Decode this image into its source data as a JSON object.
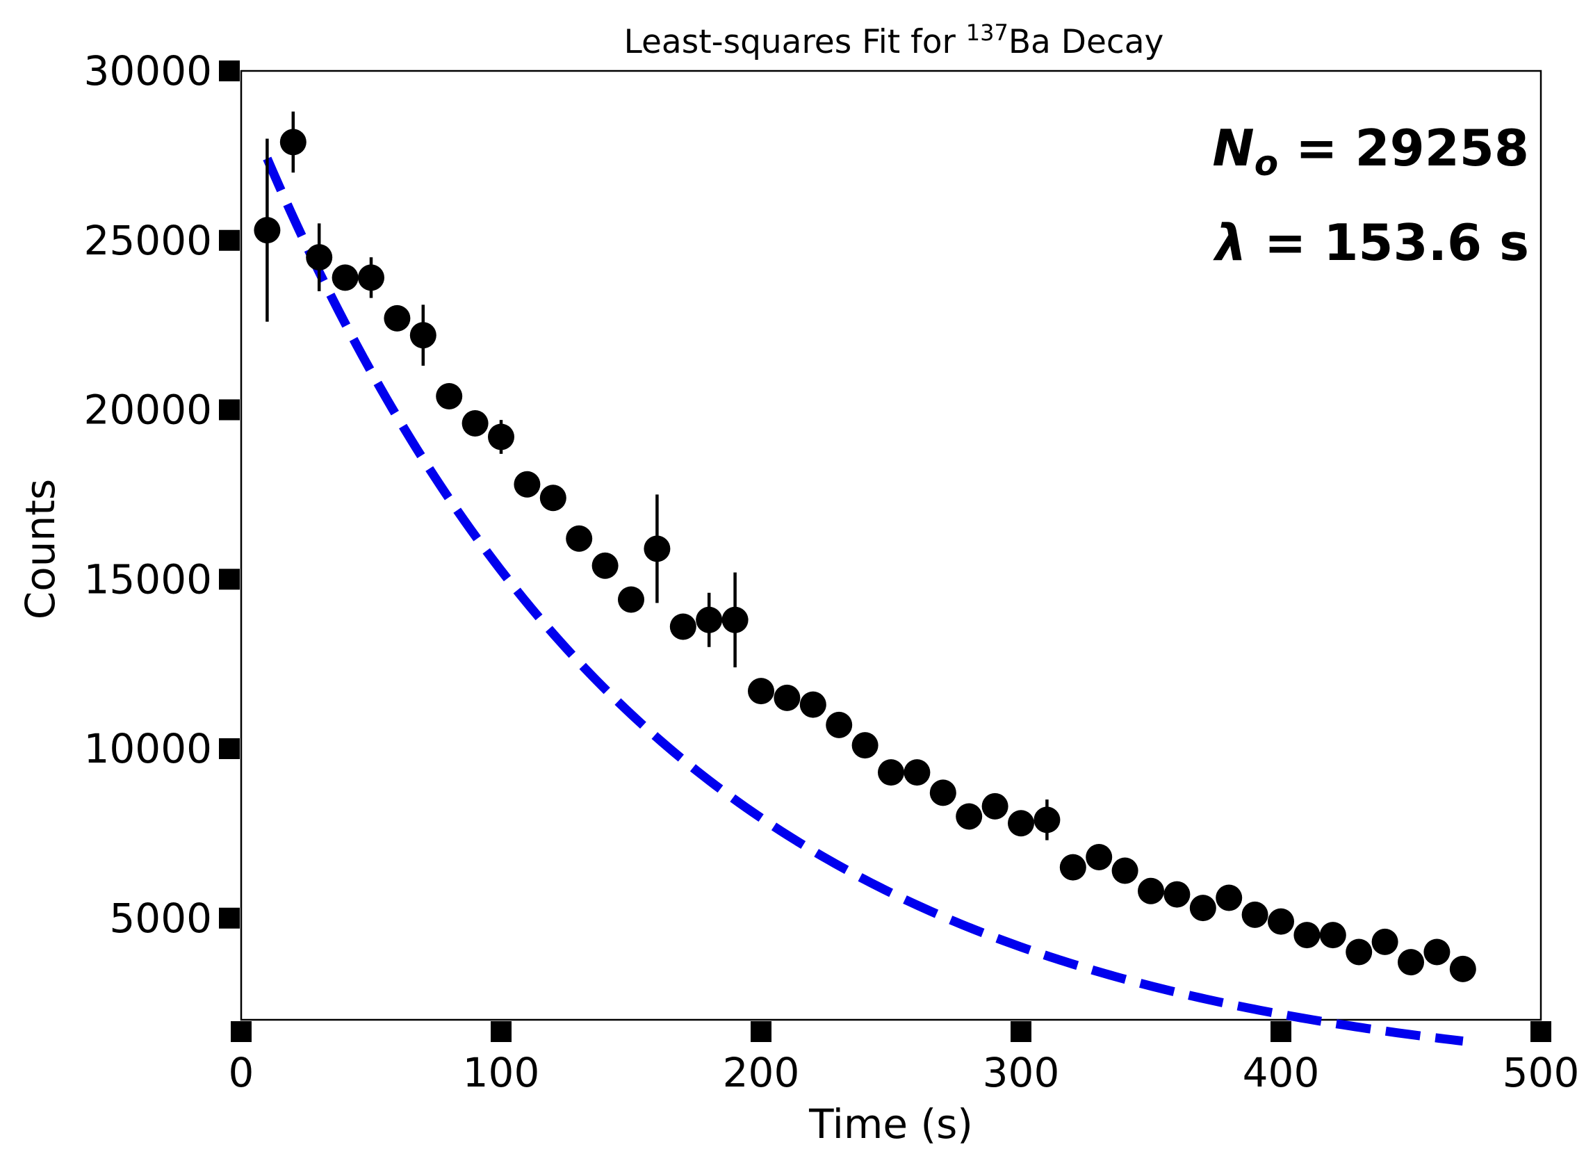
{
  "chart_data": {
    "type": "scatter",
    "title_prefix": "Least-squares Fit for ",
    "title_isotope_mass": "137",
    "title_suffix": "Ba Decay",
    "xlabel": "Time (s)",
    "ylabel": "Counts",
    "xlim": [
      0,
      500
    ],
    "ylim": [
      2000,
      30000
    ],
    "xticks": [
      0,
      100,
      200,
      300,
      400,
      500
    ],
    "yticks": [
      5000,
      10000,
      15000,
      20000,
      25000,
      30000
    ],
    "xtick_labels": [
      "0",
      "100",
      "200",
      "300",
      "400",
      "500"
    ],
    "ytick_labels": [
      "5000",
      "10000",
      "15000",
      "20000",
      "25000",
      "30000"
    ],
    "grid": false,
    "annotations": {
      "n0_symbol": "N",
      "n0_subscript": "o",
      "n0_text": " = 29258",
      "lambda_symbol": "λ",
      "lambda_text": " = 153.6 s"
    },
    "fit": {
      "style": "dashed",
      "color": "#0000ee",
      "N0": 29258,
      "tau": 153.6,
      "x_range": [
        10,
        470
      ]
    },
    "points_color": "#000000",
    "series": [
      {
        "x": [
          10,
          20,
          30,
          40,
          50,
          60,
          70,
          80,
          90,
          100,
          110,
          120,
          130,
          140,
          150,
          160,
          170,
          180,
          190,
          200,
          210,
          220,
          230,
          240,
          250,
          260,
          270,
          280,
          290,
          300,
          310,
          320,
          330,
          340,
          350,
          360,
          370,
          380,
          390,
          400,
          410,
          420,
          430,
          440,
          450,
          460,
          470
        ],
        "y": [
          25300,
          27900,
          24500,
          23900,
          23900,
          22700,
          22200,
          20400,
          19600,
          19200,
          17800,
          17400,
          16200,
          15400,
          14400,
          15900,
          13600,
          13800,
          13800,
          11700,
          11500,
          11300,
          10700,
          10100,
          9300,
          9300,
          8700,
          8000,
          8300,
          7800,
          7900,
          6500,
          6800,
          6400,
          5800,
          5700,
          5300,
          5600,
          5100,
          4900,
          4500,
          4500,
          4000,
          4300,
          3700,
          4000,
          3500
        ],
        "yerr": [
          2700,
          900,
          1000,
          0,
          600,
          0,
          900,
          0,
          0,
          500,
          0,
          0,
          0,
          0,
          0,
          1600,
          0,
          800,
          1400,
          0,
          0,
          0,
          0,
          0,
          0,
          0,
          0,
          0,
          0,
          0,
          600,
          0,
          0,
          0,
          0,
          0,
          0,
          0,
          0,
          0,
          0,
          0,
          0,
          0,
          0,
          0,
          0
        ]
      }
    ]
  }
}
